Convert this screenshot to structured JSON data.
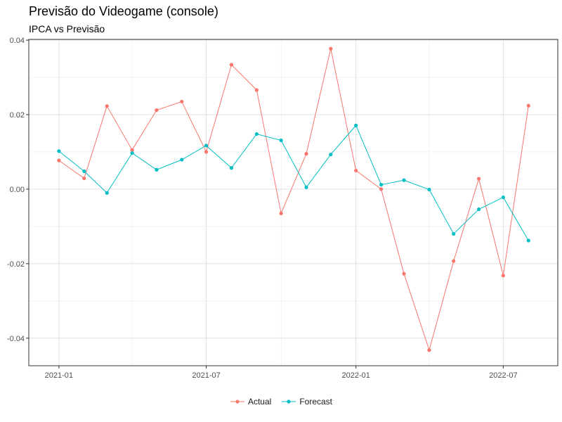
{
  "chart_data": {
    "type": "line",
    "title": "Previsão do Videogame (console)",
    "subtitle": "IPCA vs Previsão",
    "xlabel": "",
    "ylabel": "",
    "x": [
      "2021-01-01",
      "2021-02-01",
      "2021-03-01",
      "2021-04-01",
      "2021-05-01",
      "2021-06-01",
      "2021-07-01",
      "2021-08-01",
      "2021-09-01",
      "2021-10-01",
      "2021-11-01",
      "2021-12-01",
      "2022-01-01",
      "2022-02-01",
      "2022-03-01",
      "2022-04-01",
      "2022-05-01",
      "2022-06-01",
      "2022-07-01",
      "2022-08-01"
    ],
    "series": [
      {
        "name": "Actual",
        "color": "#F8766D",
        "values": [
          0.0077,
          0.0029,
          0.0223,
          0.0105,
          0.0212,
          0.0235,
          0.01,
          0.0334,
          0.0266,
          -0.0065,
          0.0095,
          0.0377,
          0.005,
          0.0,
          -0.0227,
          -0.0432,
          -0.0193,
          0.0028,
          -0.0232,
          0.0224
        ]
      },
      {
        "name": "Forecast",
        "color": "#00BFC4",
        "values": [
          0.0102,
          0.0048,
          -0.001,
          0.0097,
          0.0052,
          0.0079,
          0.0117,
          0.0057,
          0.0148,
          0.0131,
          0.0005,
          0.0093,
          0.0171,
          0.0012,
          0.0024,
          -0.0001,
          -0.012,
          -0.0054,
          -0.0022,
          -0.0138
        ]
      }
    ],
    "x_ticks": [
      {
        "date": "2021-01-01",
        "label": "2021-01"
      },
      {
        "date": "2021-07-01",
        "label": "2021-07"
      },
      {
        "date": "2022-01-01",
        "label": "2022-01"
      },
      {
        "date": "2022-07-01",
        "label": "2022-07"
      }
    ],
    "x_minor_ticks": [
      "2021-04-01",
      "2021-10-01",
      "2022-04-01"
    ],
    "xlim": [
      "2020-11-25",
      "2022-09-06"
    ],
    "y_ticks": [
      0.04,
      0.02,
      0.0,
      -0.02,
      -0.04
    ],
    "y_tick_labels": [
      "0.04",
      "0.02",
      "0.00",
      "-0.02",
      "-0.04"
    ],
    "ylim": [
      -0.0474,
      0.0402
    ],
    "grid": true,
    "legend_position": "bottom"
  }
}
